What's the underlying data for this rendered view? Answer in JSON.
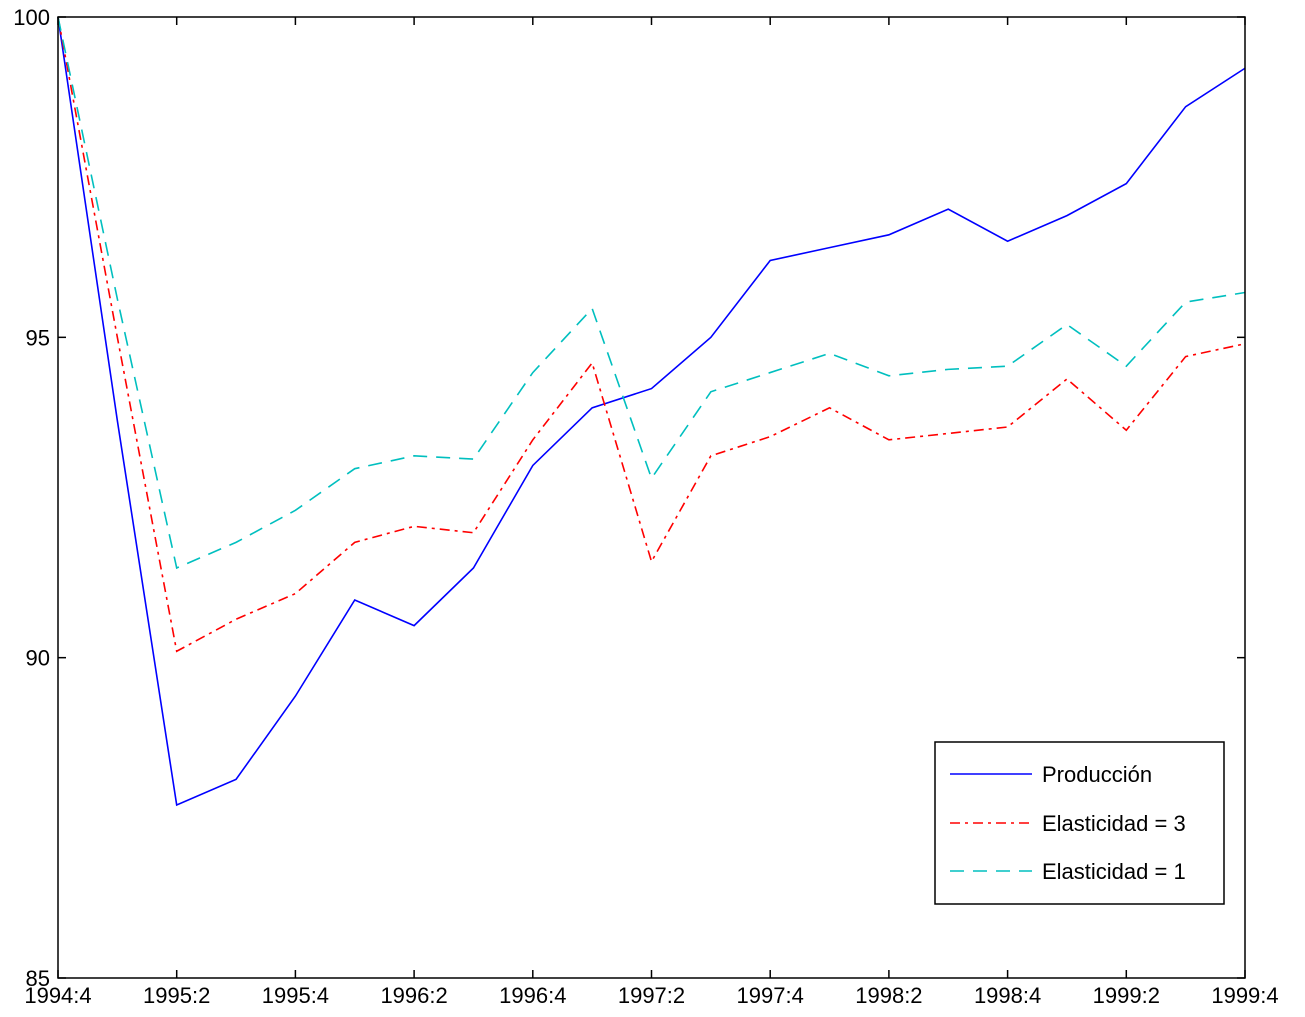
{
  "chart_data": {
    "type": "line",
    "x": [
      "1994:4",
      "1995:1",
      "1995:2",
      "1995:3",
      "1995:4",
      "1996:1",
      "1996:2",
      "1996:3",
      "1996:4",
      "1997:1",
      "1997:2",
      "1997:3",
      "1997:4",
      "1998:1",
      "1998:2",
      "1998:3",
      "1998:4",
      "1999:1",
      "1999:2",
      "1999:3",
      "1999:4"
    ],
    "x_tick_labels": [
      "1994:4",
      "1995:2",
      "1995:4",
      "1996:2",
      "1996:4",
      "1997:2",
      "1997:4",
      "1998:2",
      "1998:4",
      "1999:2",
      "1999:4"
    ],
    "ylim": [
      85,
      100
    ],
    "y_ticks": [
      85,
      90,
      95,
      100
    ],
    "legend_position": "bottom-right",
    "grid": false,
    "series": [
      {
        "name": "Producción",
        "color": "#0000ff",
        "style": "solid",
        "values": [
          100.0,
          93.7,
          87.7,
          88.1,
          89.4,
          90.9,
          90.5,
          91.4,
          93.0,
          93.9,
          94.2,
          95.0,
          96.2,
          96.4,
          96.6,
          97.0,
          96.5,
          96.9,
          97.4,
          98.6,
          99.2
        ]
      },
      {
        "name": "Elasticidad = 3",
        "color": "#ff0000",
        "style": "dashdot",
        "values": [
          100.0,
          95.0,
          90.1,
          90.6,
          91.0,
          91.8,
          92.05,
          91.95,
          93.4,
          94.6,
          91.5,
          93.15,
          93.45,
          93.9,
          93.4,
          93.5,
          93.6,
          94.35,
          93.55,
          94.7,
          94.9
        ]
      },
      {
        "name": "Elasticidad = 1",
        "color": "#00bfbf",
        "style": "dashed",
        "values": [
          100.0,
          95.6,
          91.4,
          91.8,
          92.3,
          92.95,
          93.15,
          93.1,
          94.45,
          95.45,
          92.8,
          94.15,
          94.45,
          94.75,
          94.4,
          94.5,
          94.55,
          95.2,
          94.55,
          95.55,
          95.7
        ]
      }
    ]
  }
}
